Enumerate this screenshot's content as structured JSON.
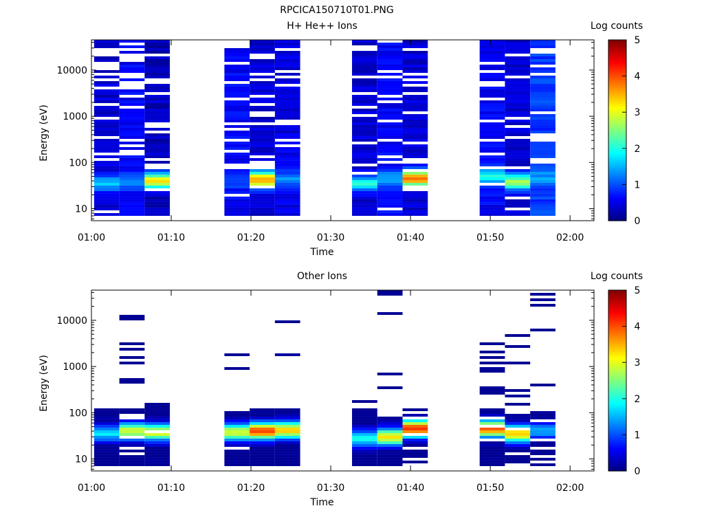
{
  "figure_title": "RPCICA150710T01.PNG",
  "colors": {
    "axis": "#000000",
    "background": "#ffffff"
  },
  "chart_data": [
    {
      "type": "heatmap",
      "title": "H+ He++ Ions",
      "xlabel": "Time",
      "ylabel": "Energy (eV)",
      "yscale": "log",
      "ylim": [
        5.5,
        45000
      ],
      "xlim": [
        "01:00",
        "02:03"
      ],
      "xticks": [
        "01:00",
        "01:10",
        "01:20",
        "01:30",
        "01:40",
        "01:50",
        "02:00"
      ],
      "yticks": [
        "10",
        "100",
        "1000",
        "10000"
      ],
      "colorbar": {
        "label": "Log counts",
        "range": [
          0,
          5
        ],
        "ticks": [
          "0",
          "1",
          "2",
          "3",
          "4",
          "5"
        ]
      },
      "sweeps": [
        {
          "start": "01:00:20",
          "end": "01:03:30",
          "dominant_log_counts": 0.4,
          "peak_log_counts": 1.6,
          "peak_energy_eV": 35
        },
        {
          "start": "01:03:30",
          "end": "01:06:40",
          "dominant_log_counts": 0.6,
          "peak_log_counts": 1.3,
          "peak_energy_eV": 40
        },
        {
          "start": "01:06:40",
          "end": "01:09:50",
          "dominant_log_counts": 0.3,
          "peak_log_counts": 3.2,
          "peak_energy_eV": 40
        },
        {
          "start": "01:16:40",
          "end": "01:19:50",
          "dominant_log_counts": 0.6,
          "peak_log_counts": 1.0,
          "peak_energy_eV": 40
        },
        {
          "start": "01:19:50",
          "end": "01:23:00",
          "dominant_log_counts": 0.4,
          "peak_log_counts": 3.7,
          "peak_energy_eV": 42
        },
        {
          "start": "01:23:00",
          "end": "01:26:10",
          "dominant_log_counts": 0.5,
          "peak_log_counts": 1.3,
          "peak_energy_eV": 45
        },
        {
          "start": "01:32:40",
          "end": "01:35:50",
          "dominant_log_counts": 0.4,
          "peak_log_counts": 2.0,
          "peak_energy_eV": 35
        },
        {
          "start": "01:35:50",
          "end": "01:39:00",
          "dominant_log_counts": 0.6,
          "peak_log_counts": 1.4,
          "peak_energy_eV": 45
        },
        {
          "start": "01:39:00",
          "end": "01:42:10",
          "dominant_log_counts": 0.4,
          "peak_log_counts": 4.0,
          "peak_energy_eV": 45
        },
        {
          "start": "01:48:40",
          "end": "01:51:50",
          "dominant_log_counts": 0.6,
          "peak_log_counts": 2.0,
          "peak_energy_eV": 50
        },
        {
          "start": "01:51:50",
          "end": "01:55:00",
          "dominant_log_counts": 0.4,
          "peak_log_counts": 2.6,
          "peak_energy_eV": 38
        },
        {
          "start": "01:55:00",
          "end": "01:58:10",
          "dominant_log_counts": 0.9,
          "peak_log_counts": 1.4,
          "peak_energy_eV": 45
        }
      ]
    },
    {
      "type": "heatmap",
      "title": "Other Ions",
      "xlabel": "Time",
      "ylabel": "Energy (eV)",
      "yscale": "log",
      "ylim": [
        5.5,
        45000
      ],
      "xlim": [
        "01:00",
        "02:03"
      ],
      "xticks": [
        "01:00",
        "01:10",
        "01:20",
        "01:30",
        "01:40",
        "01:50",
        "02:00"
      ],
      "yticks": [
        "10",
        "100",
        "1000",
        "10000"
      ],
      "colorbar": {
        "label": "Log counts",
        "range": [
          0,
          5
        ],
        "ticks": [
          "0",
          "1",
          "2",
          "3",
          "4",
          "5"
        ]
      },
      "sweeps": [
        {
          "start": "01:00:20",
          "end": "01:03:30",
          "max_energy_eV": 110,
          "peak_log_counts": 1.7,
          "peak_energy_eV": 35
        },
        {
          "start": "01:03:30",
          "end": "01:06:40",
          "max_energy_eV": 11500,
          "peak_log_counts": 2.9,
          "peak_energy_eV": 40
        },
        {
          "start": "01:06:40",
          "end": "01:09:50",
          "max_energy_eV": 140,
          "peak_log_counts": 3.0,
          "peak_energy_eV": 38
        },
        {
          "start": "01:16:40",
          "end": "01:19:50",
          "max_energy_eV": 1800,
          "peak_log_counts": 3.0,
          "peak_energy_eV": 38
        },
        {
          "start": "01:19:50",
          "end": "01:23:00",
          "max_energy_eV": 120,
          "peak_log_counts": 4.0,
          "peak_energy_eV": 40
        },
        {
          "start": "01:23:00",
          "end": "01:26:10",
          "max_energy_eV": 9000,
          "peak_log_counts": 3.4,
          "peak_energy_eV": 42
        },
        {
          "start": "01:32:40",
          "end": "01:35:50",
          "max_energy_eV": 170,
          "peak_log_counts": 2.0,
          "peak_energy_eV": 28
        },
        {
          "start": "01:35:50",
          "end": "01:39:00",
          "max_energy_eV": 40000,
          "peak_log_counts": 3.2,
          "peak_energy_eV": 30
        },
        {
          "start": "01:39:00",
          "end": "01:42:10",
          "max_energy_eV": 120,
          "peak_log_counts": 4.2,
          "peak_energy_eV": 45
        },
        {
          "start": "01:48:40",
          "end": "01:51:50",
          "max_energy_eV": 3100,
          "peak_log_counts": 3.8,
          "peak_energy_eV": 45
        },
        {
          "start": "01:51:50",
          "end": "01:55:00",
          "max_energy_eV": 4700,
          "peak_log_counts": 3.3,
          "peak_energy_eV": 35
        },
        {
          "start": "01:55:00",
          "end": "01:58:10",
          "max_energy_eV": 38000,
          "peak_log_counts": 1.5,
          "peak_energy_eV": 40
        }
      ]
    }
  ]
}
